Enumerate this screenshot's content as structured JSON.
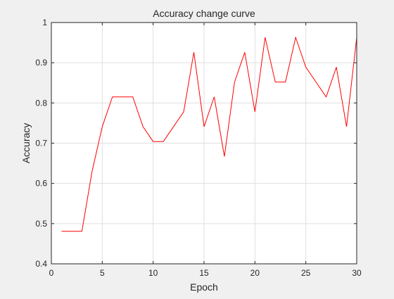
{
  "chart_data": {
    "type": "line",
    "title": "Accuracy change curve",
    "xlabel": "Epoch",
    "ylabel": "Accuracy",
    "xlim": [
      0,
      30
    ],
    "ylim": [
      0.4,
      1
    ],
    "xticks": [
      0,
      5,
      10,
      15,
      20,
      25,
      30
    ],
    "yticks": [
      0.4,
      0.5,
      0.6,
      0.7,
      0.8,
      0.9,
      1
    ],
    "xtick_labels": [
      "0",
      "5",
      "10",
      "15",
      "20",
      "25",
      "30"
    ],
    "ytick_labels": [
      "0.4",
      "0.5",
      "0.6",
      "0.7",
      "0.8",
      "0.9",
      "1"
    ],
    "grid": true,
    "series": [
      {
        "color": "#ff0000",
        "x": [
          1,
          2,
          3,
          4,
          5,
          6,
          7,
          8,
          9,
          10,
          11,
          12,
          13,
          14,
          15,
          16,
          17,
          18,
          19,
          20,
          21,
          22,
          23,
          24,
          25,
          26,
          27,
          28,
          29,
          30
        ],
        "values": [
          0.481,
          0.481,
          0.481,
          0.63,
          0.741,
          0.815,
          0.815,
          0.815,
          0.741,
          0.704,
          0.704,
          0.741,
          0.778,
          0.926,
          0.741,
          0.815,
          0.667,
          0.852,
          0.926,
          0.778,
          0.963,
          0.852,
          0.852,
          0.963,
          0.889,
          0.852,
          0.815,
          0.889,
          0.741,
          0.963
        ]
      }
    ]
  },
  "colors": {
    "figure_background": "#f0f0f0",
    "axes_background": "#ffffff",
    "axis_line": "#262626",
    "grid": "#dfdfdf"
  }
}
